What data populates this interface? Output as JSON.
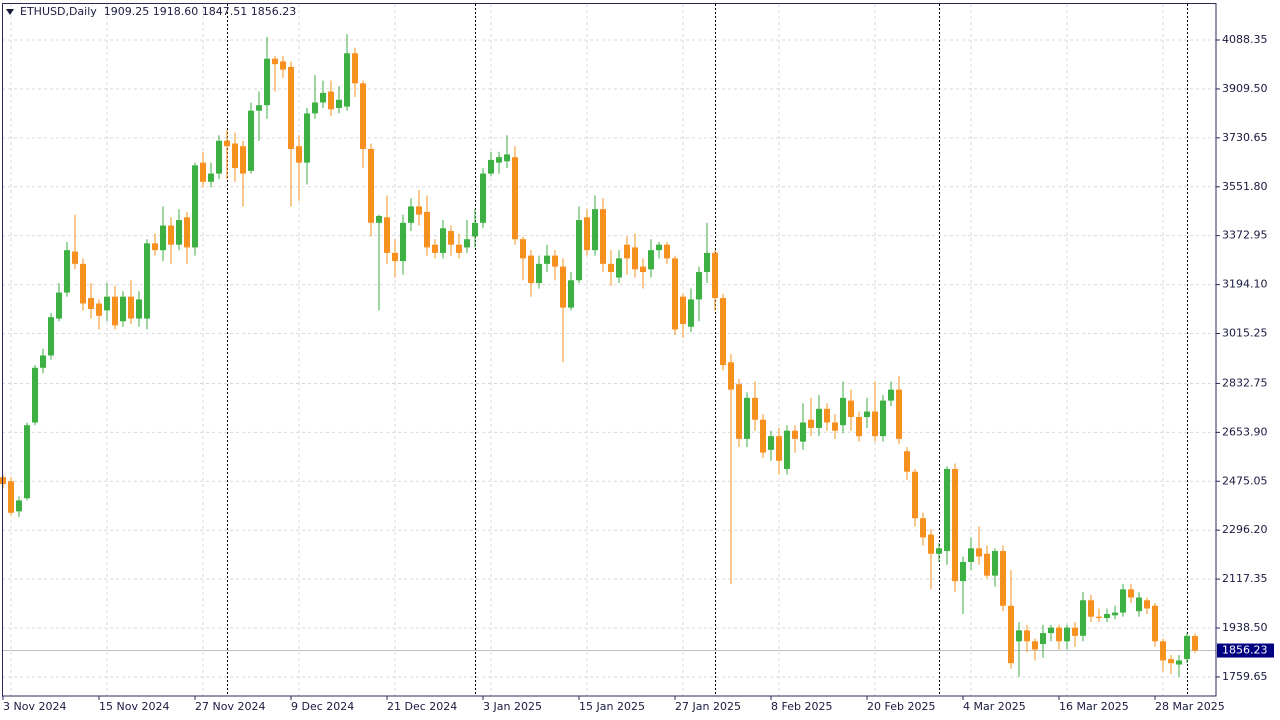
{
  "chart_data": {
    "type": "candlestick",
    "info": "ETHUSD,Daily  1909.25 1918.60 1847.51 1856.23",
    "categories": [
      null,
      "3 Nov 2024",
      null,
      null,
      null,
      null,
      null,
      null,
      null,
      null,
      null,
      null,
      null,
      "15 Nov 2024",
      null,
      null,
      null,
      null,
      null,
      null,
      null,
      null,
      null,
      null,
      null,
      "27 Nov 2024",
      null,
      null,
      null,
      null,
      null,
      null,
      null,
      null,
      null,
      null,
      null,
      "9 Dec 2024",
      null,
      null,
      null,
      null,
      null,
      null,
      null,
      null,
      null,
      null,
      null,
      "21 Dec 2024",
      null,
      null,
      null,
      null,
      null,
      null,
      null,
      null,
      null,
      null,
      null,
      "3 Jan 2025",
      null,
      null,
      null,
      null,
      null,
      null,
      null,
      null,
      null,
      null,
      null,
      "15 Jan 2025",
      null,
      null,
      null,
      null,
      null,
      null,
      null,
      null,
      null,
      null,
      null,
      "27 Jan 2025",
      null,
      null,
      null,
      null,
      null,
      null,
      null,
      null,
      null,
      null,
      null,
      "8 Feb 2025",
      null,
      null,
      null,
      null,
      null,
      null,
      null,
      null,
      null,
      null,
      null,
      "20 Feb 2025",
      null,
      null,
      null,
      null,
      null,
      null,
      null,
      null,
      null,
      null,
      null,
      "4 Mar 2025",
      null,
      null,
      null,
      null,
      null,
      null,
      null,
      null,
      null,
      null,
      null,
      "16 Mar 2025",
      null,
      null,
      null,
      null,
      null,
      null,
      null,
      null,
      null,
      null,
      null,
      "28 Mar 2025",
      null,
      null,
      null,
      null
    ],
    "open": [
      2490,
      2475,
      2365,
      2413,
      2690,
      2890,
      2935,
      3070,
      3165,
      3315,
      3270,
      3145,
      3125,
      3100,
      3150,
      3060,
      3150,
      3070,
      3070,
      3345,
      3320,
      3410,
      3340,
      3440,
      3330,
      3640,
      3570,
      3600,
      3720,
      3710,
      3700,
      3610,
      3830,
      3850,
      4020,
      4010,
      3990,
      3700,
      3640,
      3820,
      3860,
      3900,
      3840,
      3845,
      4040,
      3930,
      3690,
      3420,
      3440,
      3310,
      3280,
      3420,
      3480,
      3460,
      3340,
      3310,
      3390,
      3340,
      3330,
      3370,
      3420,
      3600,
      3640,
      3645,
      3660,
      3360,
      3300,
      3200,
      3270,
      3300,
      3260,
      3110,
      3210,
      3440,
      3320,
      3470,
      3270,
      3220,
      3340,
      3330,
      3260,
      3250,
      3320,
      3340,
      3290,
      3150,
      3040,
      3140,
      3240,
      3310,
      3145,
      2910,
      2830,
      2630,
      2780,
      2700,
      2590,
      2640,
      2520,
      2660,
      2620,
      2700,
      2670,
      2740,
      2690,
      2680,
      2770,
      2710,
      2710,
      2730,
      2640,
      2770,
      2810,
      2585,
      2510,
      2340,
      2280,
      2210,
      2220,
      2520,
      2110,
      2180,
      2230,
      2210,
      2130,
      2220,
      2020,
      1890,
      1930,
      1890,
      1880,
      1920,
      1940,
      1890,
      1940,
      1910,
      2040,
      1980,
      1975,
      1985,
      1995,
      2080,
      2000,
      2040,
      2020,
      1890,
      1825,
      1805,
      1825,
      1909.25
    ],
    "high": [
      2500,
      2490,
      2420,
      2690,
      2900,
      2960,
      3090,
      3200,
      3350,
      3450,
      3290,
      3200,
      3140,
      3200,
      3190,
      3170,
      3210,
      3170,
      3360,
      3380,
      3480,
      3440,
      3470,
      3460,
      3640,
      3680,
      3640,
      3740,
      3760,
      3750,
      3720,
      3860,
      3900,
      4100,
      4030,
      4030,
      4010,
      3740,
      3840,
      3960,
      3940,
      3940,
      3920,
      4110,
      4060,
      3940,
      3710,
      3450,
      3520,
      3360,
      3450,
      3510,
      3540,
      3520,
      3360,
      3430,
      3410,
      3380,
      3430,
      3470,
      3620,
      3680,
      3680,
      3740,
      3700,
      3370,
      3320,
      3300,
      3340,
      3320,
      3290,
      3240,
      3480,
      3470,
      3520,
      3510,
      3320,
      3320,
      3370,
      3380,
      3290,
      3360,
      3350,
      3350,
      3300,
      3160,
      3180,
      3260,
      3420,
      3320,
      3160,
      2940,
      2850,
      2800,
      2840,
      2720,
      2660,
      2670,
      2680,
      2680,
      2760,
      2780,
      2790,
      2760,
      2720,
      2840,
      2810,
      2730,
      2780,
      2840,
      2790,
      2840,
      2860,
      2600,
      2520,
      2360,
      2300,
      2250,
      2530,
      2540,
      2200,
      2270,
      2310,
      2240,
      2230,
      2240,
      2150,
      1960,
      1950,
      1900,
      1950,
      1950,
      1950,
      1950,
      1960,
      2070,
      2060,
      2010,
      2010,
      2020,
      2100,
      2100,
      2070,
      2050,
      2030,
      1900,
      1840,
      1840,
      1920,
      1918.6
    ],
    "low": [
      2450,
      2350,
      2345,
      2405,
      2680,
      2870,
      2920,
      3060,
      3150,
      3250,
      3100,
      3070,
      3030,
      3060,
      3030,
      3040,
      3050,
      3040,
      3030,
      3300,
      3280,
      3270,
      3320,
      3270,
      3300,
      3550,
      3550,
      3580,
      3580,
      3570,
      3480,
      3600,
      3720,
      3800,
      3900,
      3950,
      3480,
      3500,
      3560,
      3800,
      3840,
      3810,
      3820,
      3830,
      3880,
      3620,
      3370,
      3100,
      3270,
      3220,
      3230,
      3390,
      3410,
      3300,
      3290,
      3290,
      3300,
      3290,
      3310,
      3330,
      3400,
      3590,
      3600,
      3620,
      3340,
      3210,
      3150,
      3180,
      3240,
      3210,
      2910,
      3100,
      3200,
      3300,
      3300,
      3240,
      3190,
      3200,
      3230,
      3220,
      3180,
      3220,
      3290,
      3270,
      3010,
      3000,
      3020,
      3060,
      3200,
      3100,
      2880,
      2100,
      2600,
      2600,
      2660,
      2560,
      2550,
      2500,
      2500,
      2580,
      2590,
      2640,
      2640,
      2660,
      2630,
      2650,
      2660,
      2620,
      2670,
      2620,
      2620,
      2750,
      2610,
      2480,
      2310,
      2240,
      2080,
      2180,
      2170,
      2070,
      1990,
      2150,
      2170,
      2120,
      2090,
      2000,
      1790,
      1760,
      1850,
      1820,
      1830,
      1890,
      1860,
      1860,
      1870,
      1890,
      1960,
      1960,
      1960,
      1970,
      1980,
      2030,
      1980,
      1990,
      1870,
      1780,
      1770,
      1760,
      1810,
      1847.51
    ],
    "close": [
      2465,
      2360,
      2405,
      2680,
      2890,
      2935,
      3075,
      3165,
      3320,
      3270,
      3125,
      3105,
      3080,
      3150,
      3045,
      3150,
      3070,
      3140,
      3345,
      3320,
      3410,
      3340,
      3430,
      3330,
      3630,
      3570,
      3600,
      3720,
      3700,
      3620,
      3600,
      3830,
      3850,
      4020,
      4000,
      3980,
      3690,
      3640,
      3820,
      3860,
      3895,
      3835,
      3870,
      4040,
      3930,
      3690,
      3420,
      3445,
      3310,
      3280,
      3420,
      3480,
      3450,
      3330,
      3310,
      3400,
      3340,
      3310,
      3360,
      3420,
      3600,
      3650,
      3660,
      3670,
      3360,
      3290,
      3200,
      3270,
      3300,
      3260,
      3110,
      3210,
      3430,
      3320,
      3470,
      3270,
      3240,
      3290,
      3290,
      3250,
      3240,
      3320,
      3340,
      3290,
      3030,
      3050,
      3140,
      3240,
      3310,
      3145,
      2900,
      2810,
      2630,
      2780,
      2700,
      2580,
      2640,
      2550,
      2660,
      2630,
      2690,
      2670,
      2740,
      2690,
      2660,
      2780,
      2710,
      2640,
      2730,
      2640,
      2770,
      2810,
      2630,
      2510,
      2340,
      2270,
      2210,
      2230,
      2520,
      2110,
      2180,
      2230,
      2200,
      2130,
      2220,
      2020,
      1810,
      1930,
      1890,
      1860,
      1920,
      1940,
      1890,
      1940,
      1910,
      2040,
      1980,
      1975,
      1990,
      1995,
      2080,
      2050,
      2050,
      2010,
      1890,
      1820,
      1810,
      1820,
      1910,
      1856.23
    ],
    "up_color": "#3cb043",
    "down_color": "#f7901e",
    "ylim": [
      1690,
      4220
    ],
    "yticks": [
      {
        "value": 1759.65,
        "label": "1759.65"
      },
      {
        "value": 1938.5,
        "label": "1938.50"
      },
      {
        "value": 2117.35,
        "label": "2117.35"
      },
      {
        "value": 2296.2,
        "label": "2296.20"
      },
      {
        "value": 2475.05,
        "label": "2475.05"
      },
      {
        "value": 2653.9,
        "label": "2653.90"
      },
      {
        "value": 2832.75,
        "label": "2832.75"
      },
      {
        "value": 3015.25,
        "label": "3015.25"
      },
      {
        "value": 3194.1,
        "label": "3194.10"
      },
      {
        "value": 3372.95,
        "label": "3372.95"
      },
      {
        "value": 3551.8,
        "label": "3551.80"
      },
      {
        "value": 3730.65,
        "label": "3730.65"
      },
      {
        "value": 3909.5,
        "label": "3909.50"
      },
      {
        "value": 4088.35,
        "label": "4088.35"
      }
    ],
    "last_price": {
      "value": 1856.23,
      "label": "1856.23"
    },
    "grid": true
  }
}
